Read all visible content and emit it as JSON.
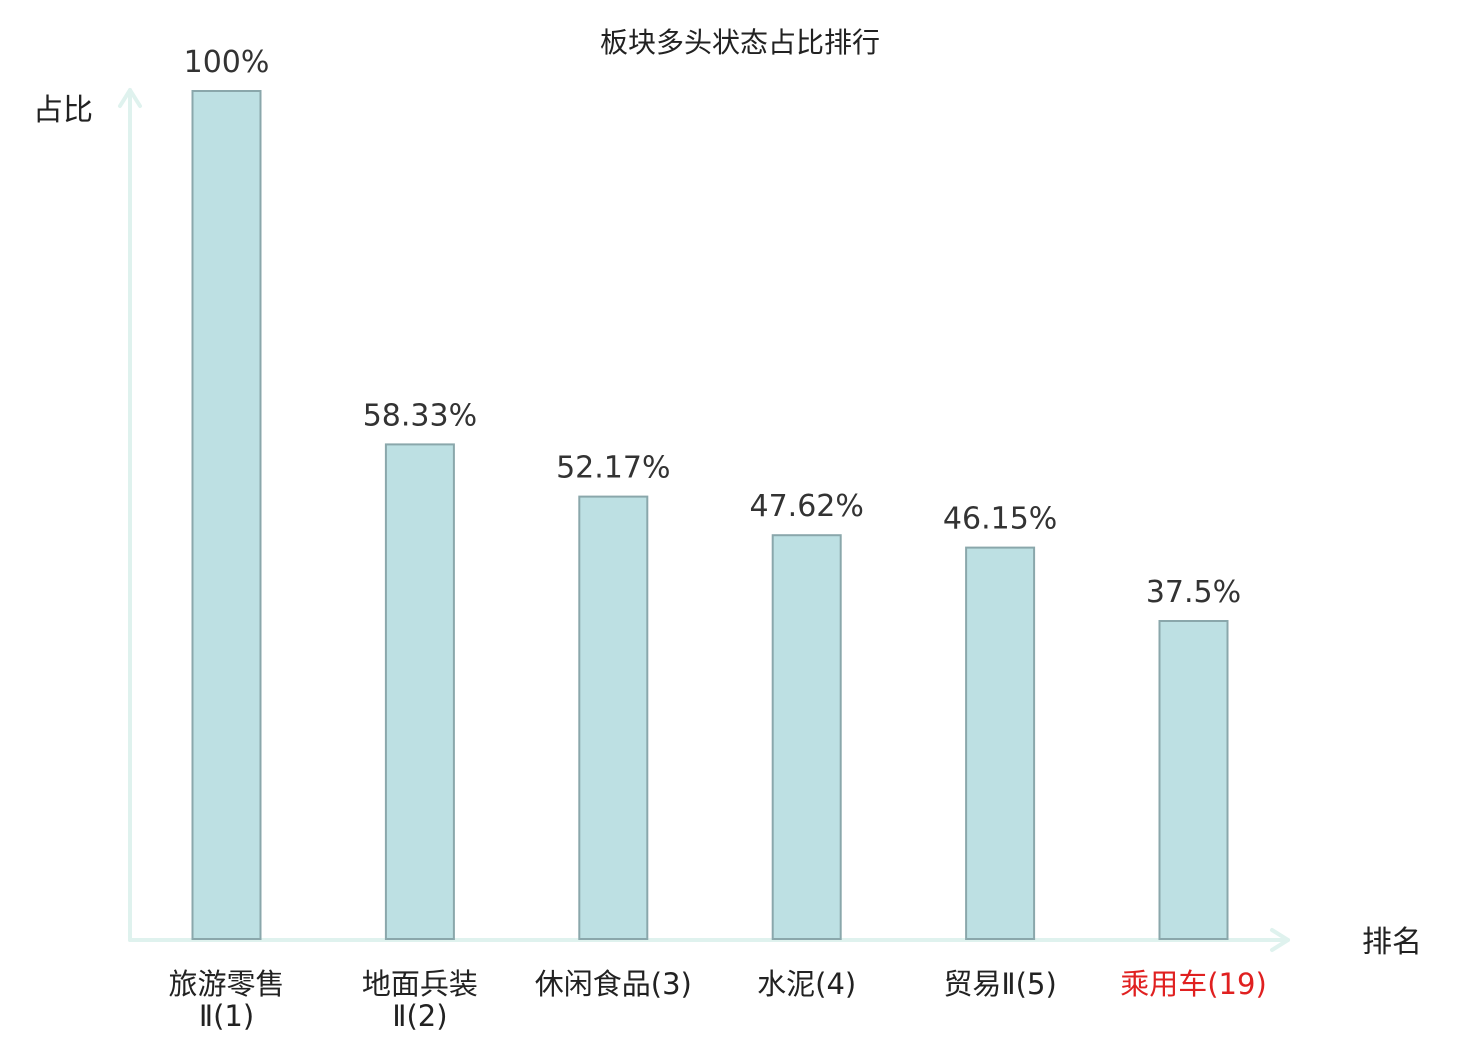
{
  "chart_data": {
    "type": "bar",
    "title": "板块多头状态占比排行",
    "ylabel": "占比",
    "xlabel": "排名",
    "ylim": [
      0,
      100
    ],
    "grid": false,
    "categories": [
      {
        "name": "旅游零售",
        "suffix": "Ⅱ(1)",
        "wrap": true,
        "highlight": false
      },
      {
        "name": "地面兵装",
        "suffix": "Ⅱ(2)",
        "wrap": true,
        "highlight": false
      },
      {
        "name": "休闲食品",
        "suffix": "(3)",
        "wrap": false,
        "highlight": false
      },
      {
        "name": "水泥",
        "suffix": "(4)",
        "wrap": false,
        "highlight": false
      },
      {
        "name": "贸易",
        "suffix": "Ⅱ(5)",
        "wrap": false,
        "highlight": false
      },
      {
        "name": "乘用车",
        "suffix": "(19)",
        "wrap": false,
        "highlight": true
      }
    ],
    "values": [
      100,
      58.33,
      52.17,
      47.62,
      46.15,
      37.5
    ],
    "value_labels": [
      "100%",
      "58.33%",
      "52.17%",
      "47.62%",
      "46.15%",
      "37.5%"
    ],
    "colors": {
      "bar_fill": "#bde0e3",
      "bar_stroke": "#8aa7ab",
      "axis": "#dff2ee",
      "highlight_text": "#e02020",
      "text": "#222222"
    }
  }
}
